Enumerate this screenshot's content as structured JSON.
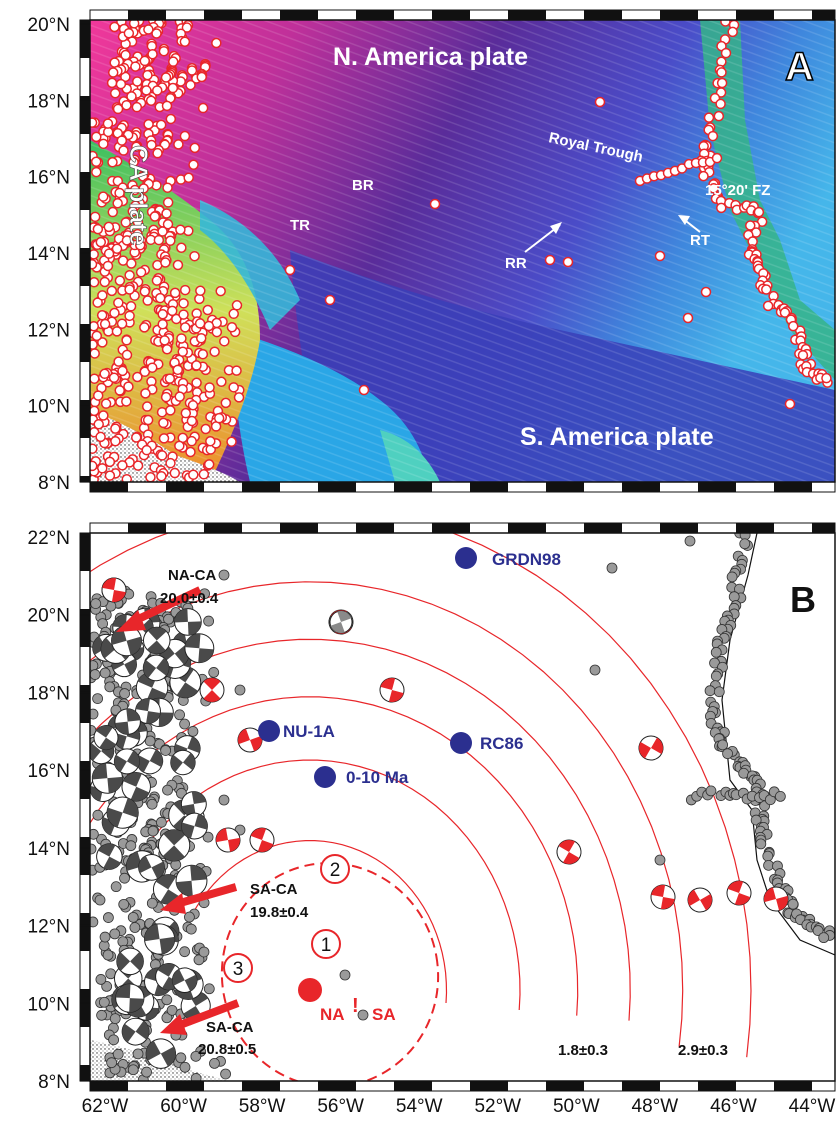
{
  "panel_a": {
    "letter": "A",
    "lat_ticks": [
      "20°N",
      "18°N",
      "16°N",
      "14°N",
      "12°N",
      "10°N",
      "8°N"
    ],
    "plates": {
      "north": "N. America plate",
      "south": "S. America plate",
      "ca": "CA plate"
    },
    "features": {
      "royal_trough": "Royal Trough",
      "fz": "15°20' FZ",
      "br": "BR",
      "tr": "TR",
      "rr": "RR",
      "rt": "RT"
    }
  },
  "panel_b": {
    "letter": "B",
    "lat_ticks": [
      "22°N",
      "20°N",
      "18°N",
      "16°N",
      "14°N",
      "12°N",
      "10°N",
      "8°N"
    ],
    "lon_ticks": [
      "62°W",
      "60°W",
      "58°W",
      "56°W",
      "54°W",
      "52°W",
      "50°W",
      "48°W",
      "46°W",
      "44°W"
    ],
    "vectors": [
      {
        "name": "NA-CA",
        "rate": "20.0±0.4"
      },
      {
        "name": "SA-CA",
        "rate": "19.8±0.4"
      },
      {
        "name": "SA-CA",
        "rate": "20.8±0.5"
      }
    ],
    "stations": [
      "GRDN98",
      "NU-1A",
      "RC86",
      "0-10 Ma"
    ],
    "pole_numbers": [
      "1",
      "2",
      "3"
    ],
    "pole_label": {
      "left": "NA",
      "bang": "!",
      "right": "SA"
    },
    "contour_labels": [
      "1.8±0.3",
      "2.9±0.3"
    ]
  },
  "colors": {
    "red": "#e8262a",
    "station_blue": "#2b2f8f",
    "quake_grey": "#9a9a9a"
  }
}
